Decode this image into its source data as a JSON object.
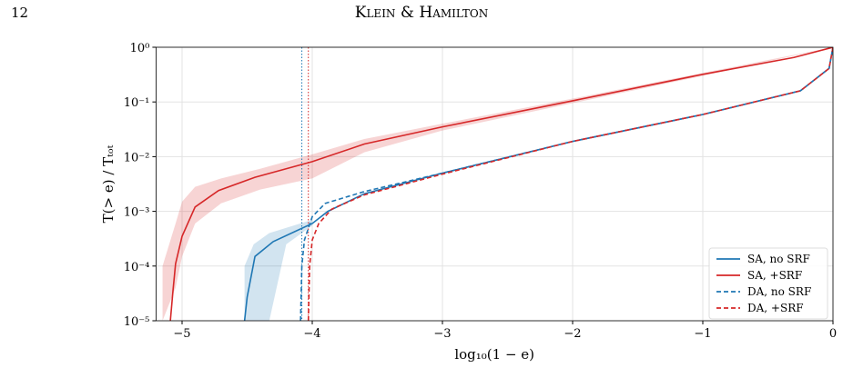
{
  "header": {
    "page_number": "12",
    "running_head": "Klein & Hamilton"
  },
  "chart_data": {
    "type": "line",
    "xlabel": "log₁₀(1 − e)",
    "ylabel": "T(> e) / Tₜₒₜ",
    "xlim": [
      -5.2,
      0
    ],
    "ylim": [
      1e-05,
      1
    ],
    "log_y": true,
    "grid": true,
    "legend": "lower right",
    "xticks": [
      {
        "value": -5,
        "label": "−5"
      },
      {
        "value": -4,
        "label": "−4"
      },
      {
        "value": -3,
        "label": "−3"
      },
      {
        "value": -2,
        "label": "−2"
      },
      {
        "value": -1,
        "label": "−1"
      },
      0
    ],
    "yticks": [
      {
        "value": 1e-05,
        "label": "10⁻⁵"
      },
      {
        "value": 0.0001,
        "label": "10⁻⁴"
      },
      {
        "value": 0.001,
        "label": "10⁻³"
      },
      {
        "value": 0.01,
        "label": "10⁻²"
      },
      {
        "value": 0.1,
        "label": "10⁻¹"
      },
      {
        "value": 1,
        "label": "10⁰"
      }
    ],
    "bands": [
      {
        "color": "#1f77b4",
        "x": [
          -4.52,
          -4.45,
          -4.33,
          -4.2,
          -4.0
        ],
        "lower": [
          1e-05,
          1e-05,
          1e-05,
          0.00025,
          0.00055
        ],
        "upper": [
          0.0001,
          0.00025,
          0.0004,
          0.0005,
          0.0007
        ]
      },
      {
        "color": "#d62728",
        "x": [
          -5.15,
          -5.05,
          -5.0,
          -4.9,
          -4.7,
          -4.4,
          -4.0,
          -3.6,
          -3.0,
          -2.0,
          -1.0,
          0
        ],
        "lower": [
          1e-05,
          4e-05,
          0.00015,
          0.0006,
          0.0014,
          0.0025,
          0.004,
          0.012,
          0.03,
          0.095,
          0.3,
          1
        ],
        "upper": [
          0.0001,
          0.0006,
          0.0015,
          0.0028,
          0.004,
          0.006,
          0.011,
          0.021,
          0.04,
          0.115,
          0.34,
          1
        ]
      }
    ],
    "vlines": [
      {
        "x": -4.08,
        "color": "#1f77b4"
      },
      {
        "x": -4.03,
        "color": "#d62728"
      }
    ],
    "series": [
      {
        "name": "SA, no SRF",
        "color": "#1f77b4",
        "dash": false,
        "x": [
          -4.52,
          -4.5,
          -4.44,
          -4.3,
          -4.0,
          -3.88,
          -3.6,
          -3.0,
          -2.0,
          -1.0,
          -0.25,
          -0.03,
          0
        ],
        "values": [
          1e-05,
          2.7e-05,
          0.00015,
          0.00028,
          0.0006,
          0.001,
          0.0021,
          0.005,
          0.019,
          0.059,
          0.16,
          0.41,
          1
        ]
      },
      {
        "name": "SA, +SRF",
        "color": "#d62728",
        "dash": false,
        "x": [
          -5.09,
          -5.07,
          -5.05,
          -5.0,
          -4.9,
          -4.72,
          -4.44,
          -4.0,
          -3.6,
          -3.0,
          -2.0,
          -1.0,
          -0.3,
          0
        ],
        "values": [
          1e-05,
          3.5e-05,
          0.00011,
          0.00035,
          0.0012,
          0.0024,
          0.0042,
          0.0081,
          0.017,
          0.035,
          0.105,
          0.32,
          0.65,
          1
        ]
      },
      {
        "name": "DA, no SRF",
        "color": "#1f77b4",
        "dash": true,
        "x": [
          -4.09,
          -4.08,
          -4.06,
          -4.0,
          -3.9,
          -3.6,
          -3.0,
          -2.0,
          -1.0,
          -0.25,
          -0.03,
          0
        ],
        "values": [
          1e-05,
          0.0001,
          0.0003,
          0.0008,
          0.0014,
          0.0023,
          0.005,
          0.019,
          0.059,
          0.16,
          0.41,
          1
        ]
      },
      {
        "name": "DA, +SRF",
        "color": "#d62728",
        "dash": true,
        "x": [
          -4.03,
          -4.02,
          -4.0,
          -3.95,
          -3.85,
          -3.6,
          -3.0,
          -2.0,
          -1.0,
          -0.25,
          -0.03,
          0
        ],
        "values": [
          1e-05,
          0.0001,
          0.0003,
          0.0006,
          0.0011,
          0.002,
          0.0048,
          0.019,
          0.059,
          0.16,
          0.41,
          1
        ]
      }
    ]
  }
}
